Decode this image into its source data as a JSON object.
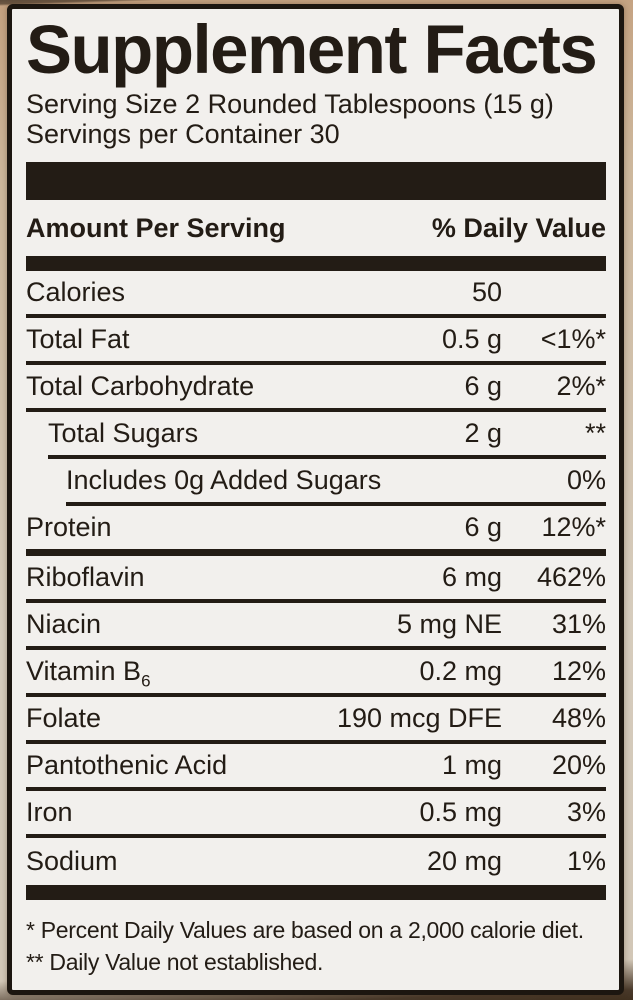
{
  "title": "Supplement Facts",
  "serving": {
    "size_line": "Serving Size 2 Rounded Tablespoons (15 g)",
    "per_container_line": "Servings per Container 30"
  },
  "table": {
    "header": {
      "left": "Amount Per Serving",
      "right": "% Daily Value"
    },
    "rows": [
      {
        "name": "Calories",
        "amount": "50",
        "dv": "",
        "indent": 0
      },
      {
        "name": "Total Fat",
        "amount": "0.5 g",
        "dv": "<1%*",
        "indent": 0
      },
      {
        "name": "Total Carbohydrate",
        "amount": "6 g",
        "dv": "2%*",
        "indent": 0
      },
      {
        "name": "Total Sugars",
        "amount": "2 g",
        "dv": "**",
        "indent": 1
      },
      {
        "name": "Includes 0g Added Sugars",
        "amount": "",
        "dv": "0%",
        "indent": 2
      },
      {
        "name": "Protein",
        "amount": "6 g",
        "dv": "12%*",
        "indent": 0,
        "thick_bottom": true
      },
      {
        "name": "Riboflavin",
        "amount": "6 mg",
        "dv": "462%",
        "indent": 0
      },
      {
        "name": "Niacin",
        "amount": "5 mg NE",
        "dv": "31%",
        "indent": 0
      },
      {
        "name": "Vitamin B",
        "name_sub": "6",
        "amount": "0.2 mg",
        "dv": "12%",
        "indent": 0
      },
      {
        "name": "Folate",
        "amount": "190 mcg DFE",
        "dv": "48%",
        "indent": 0
      },
      {
        "name": "Pantothenic Acid",
        "amount": "1 mg",
        "dv": "20%",
        "indent": 0
      },
      {
        "name": "Iron",
        "amount": "0.5 mg",
        "dv": "3%",
        "indent": 0
      },
      {
        "name": "Sodium",
        "amount": "20 mg",
        "dv": "1%",
        "indent": 0
      }
    ]
  },
  "footnotes": [
    "* Percent Daily Values are based on a 2,000 calorie diet.",
    "** Daily Value not established."
  ],
  "colors": {
    "ink": "#231c15",
    "label-bg": "#f2f0ed"
  }
}
